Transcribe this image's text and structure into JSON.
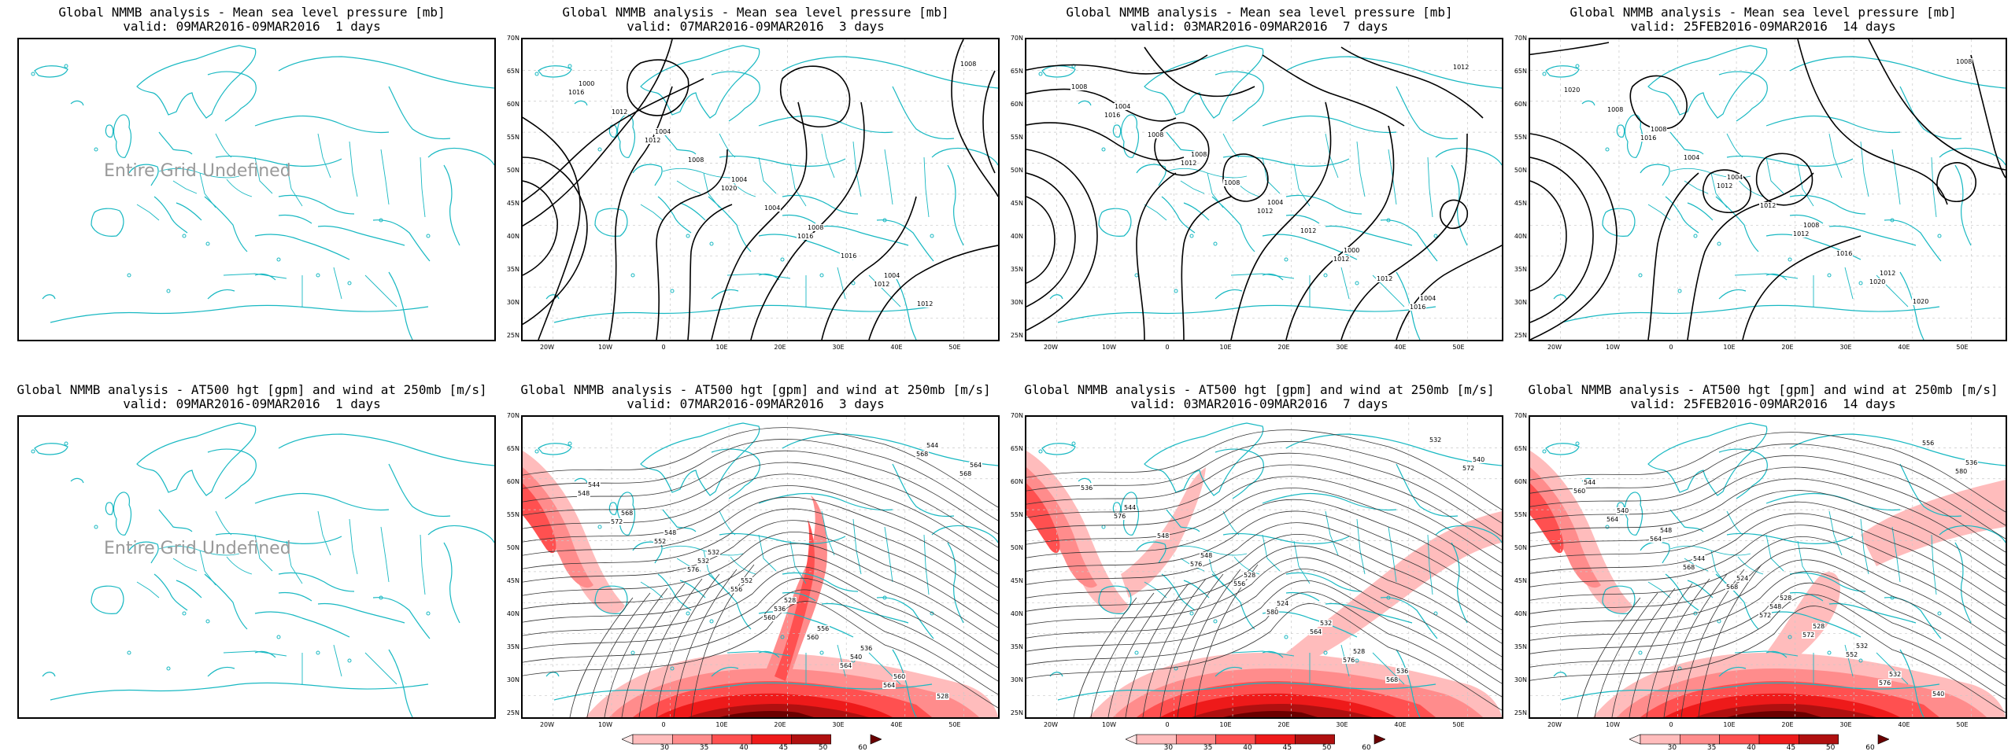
{
  "panels": [
    {
      "title1": "Global NMMB analysis - Mean sea level pressure [mb]",
      "title2": "valid: 09MAR2016-09MAR2016  1 days",
      "undefined_text": "Entire Grid Undefined",
      "labels": []
    },
    {
      "title1": "Global NMMB analysis - Mean sea level pressure [mb]",
      "title2": "valid: 07MAR2016-09MAR2016  3 days",
      "undefined_text": "",
      "labels": [
        "1000",
        "1004",
        "1004",
        "1008",
        "1004",
        "1008",
        "1012",
        "1008",
        "1004",
        "1016",
        "1012",
        "1016",
        "1012",
        "1020",
        "1016",
        "1012"
      ]
    },
    {
      "title1": "Global NMMB analysis - Mean sea level pressure [mb]",
      "title2": "valid: 03MAR2016-09MAR2016  7 days",
      "undefined_text": "",
      "labels": [
        "1004",
        "1008",
        "1004",
        "1000",
        "1004",
        "1008",
        "1008",
        "1008",
        "1012",
        "1012",
        "1012",
        "1016",
        "1012",
        "1012",
        "1012",
        "1016"
      ]
    },
    {
      "title1": "Global NMMB analysis - Mean sea level pressure [mb]",
      "title2": "valid: 25FEB2016-09MAR2016  14 days",
      "undefined_text": "",
      "labels": [
        "1008",
        "1004",
        "1008",
        "1012",
        "1008",
        "1008",
        "1004",
        "1012",
        "1016",
        "1020",
        "1020",
        "1016",
        "1012",
        "1012",
        "1020"
      ]
    },
    {
      "title1": "Global NMMB analysis - AT500 hgt [gpm] and wind at 250mb [m/s]",
      "title2": "valid: 09MAR2016-09MAR2016  1 days",
      "undefined_text": "Entire Grid Undefined",
      "labels": []
    },
    {
      "title1": "Global NMMB analysis - AT500 hgt [gpm] and wind at 250mb [m/s]",
      "title2": "valid: 07MAR2016-09MAR2016  3 days",
      "undefined_text": "",
      "labels": [
        "532",
        "528",
        "536",
        "528",
        "544",
        "548",
        "552",
        "556",
        "560",
        "564",
        "568",
        "532",
        "536",
        "540",
        "544",
        "548",
        "552",
        "556",
        "560",
        "564",
        "568",
        "572",
        "576",
        "560",
        "564",
        "568"
      ]
    },
    {
      "title1": "Global NMMB analysis - AT500 hgt [gpm] and wind at 250mb [m/s]",
      "title2": "valid: 03MAR2016-09MAR2016  7 days",
      "undefined_text": "",
      "labels": [
        "528",
        "532",
        "536",
        "540",
        "544",
        "548",
        "524",
        "528",
        "532",
        "536",
        "548",
        "556",
        "564",
        "568",
        "572",
        "576",
        "576",
        "580",
        "576"
      ]
    },
    {
      "title1": "Global NMMB analysis - AT500 hgt [gpm] and wind at 250mb [m/s]",
      "title2": "valid: 25FEB2016-09MAR2016  14 days",
      "undefined_text": "",
      "labels": [
        "528",
        "532",
        "540",
        "544",
        "548",
        "524",
        "528",
        "532",
        "536",
        "540",
        "544",
        "548",
        "552",
        "556",
        "560",
        "564",
        "568",
        "572",
        "576",
        "580",
        "564",
        "568",
        "572"
      ]
    }
  ],
  "axes": {
    "lat_labels": [
      "70N",
      "65N",
      "60N",
      "55N",
      "50N",
      "45N",
      "40N",
      "35N",
      "30N",
      "25N"
    ],
    "lon_labels": [
      "20W",
      "10W",
      "0",
      "10E",
      "20E",
      "30E",
      "40E",
      "50E"
    ]
  },
  "colorbar": {
    "ticks": [
      "30",
      "35",
      "40",
      "45",
      "50",
      "60"
    ],
    "colors": [
      "#ffe8e8",
      "#ffbcbc",
      "#ff8c8c",
      "#ff5050",
      "#ee1a1a",
      "#b01010",
      "#6a0000"
    ]
  },
  "colors": {
    "coast": "#18b8c2",
    "contour": "#000000",
    "grid": "#c8c8c8"
  }
}
